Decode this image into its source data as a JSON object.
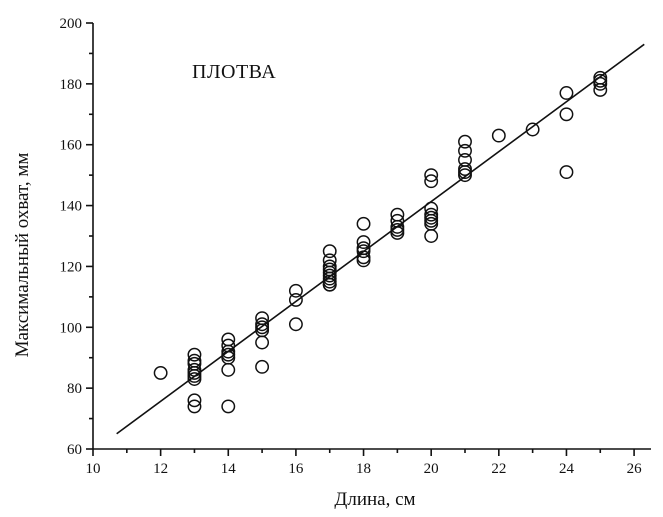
{
  "chart_data": {
    "type": "scatter",
    "title": "ПЛОТВА",
    "xlabel": "Длина, см",
    "ylabel": "Максимальный охват, мм",
    "xlim": [
      10,
      26.5
    ],
    "ylim": [
      60,
      200
    ],
    "xticks": [
      10,
      12,
      14,
      16,
      18,
      20,
      22,
      24,
      26
    ],
    "yticks": [
      60,
      80,
      100,
      120,
      140,
      160,
      180,
      200
    ],
    "xtick_labels": [
      "10",
      "12",
      "14",
      "16",
      "18",
      "20",
      "22",
      "24",
      "26"
    ],
    "ytick_labels": [
      "60",
      "80",
      "100",
      "120",
      "140",
      "160",
      "180",
      "200"
    ],
    "grid": false,
    "legend": "none",
    "series": [
      {
        "marker": "open-circle",
        "x": [
          12,
          13,
          13,
          13,
          13,
          13,
          13,
          13,
          13,
          13,
          14,
          14,
          14,
          14,
          14,
          14,
          14,
          15,
          15,
          15,
          15,
          15,
          15,
          16,
          16,
          16,
          17,
          17,
          17,
          17,
          17,
          17,
          17,
          17,
          17,
          17,
          18,
          18,
          18,
          18,
          18,
          18,
          19,
          19,
          19,
          19,
          19,
          20,
          20,
          20,
          20,
          20,
          20,
          20,
          20,
          21,
          21,
          21,
          21,
          21,
          21,
          22,
          23,
          24,
          24,
          24,
          25,
          25,
          25,
          25
        ],
        "y": [
          85,
          91,
          89,
          88,
          86,
          85,
          84,
          83,
          76,
          74,
          96,
          94,
          92,
          91,
          90,
          86,
          74,
          103,
          101,
          100,
          99,
          95,
          87,
          112,
          109,
          101,
          125,
          122,
          120,
          119,
          118,
          117,
          116,
          115,
          114,
          114,
          134,
          128,
          126,
          125,
          123,
          122,
          137,
          135,
          133,
          132,
          131,
          150,
          148,
          139,
          137,
          136,
          135,
          134,
          130,
          161,
          158,
          155,
          152,
          151,
          150,
          163,
          165,
          177,
          170,
          151,
          182,
          181,
          180,
          178
        ]
      }
    ],
    "fit_line": {
      "type": "linear",
      "x": [
        10.7,
        26.3
      ],
      "y": [
        65,
        193
      ]
    }
  }
}
